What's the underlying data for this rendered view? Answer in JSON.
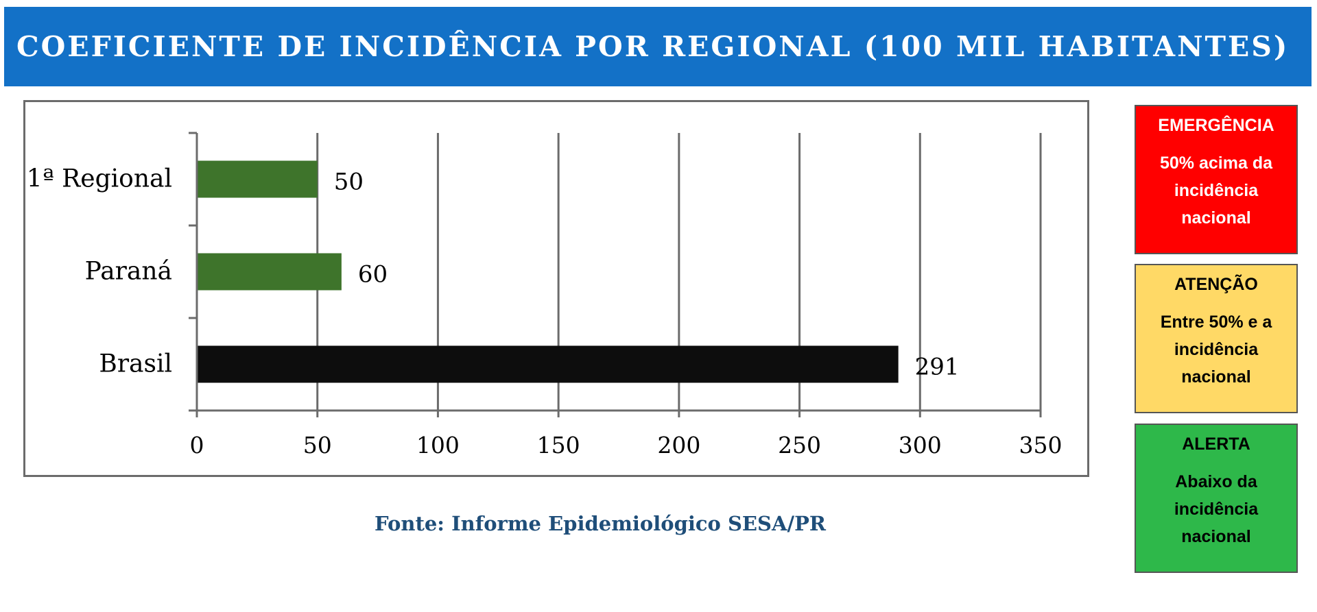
{
  "header": {
    "title": "COEFICIENTE DE INCIDÊNCIA POR REGIONAL (100 MIL HABITANTES)",
    "background_color": "#1371c7"
  },
  "chart_data": {
    "type": "bar",
    "orientation": "horizontal",
    "categories": [
      "1ª Regional",
      "Paraná",
      "Brasil"
    ],
    "values": [
      50,
      60,
      291
    ],
    "data_labels": [
      "50",
      "60",
      "291"
    ],
    "bar_colors": [
      "#3e742b",
      "#3e742b",
      "#0d0d0d"
    ],
    "x_ticks": [
      "0",
      "50",
      "100",
      "150",
      "200",
      "250",
      "300",
      "350"
    ],
    "xlim": [
      0,
      350
    ],
    "grid": "vertical",
    "legend": "none"
  },
  "source": "Fonte: Informe Epidemiológico SESA/PR",
  "legend_boxes": [
    {
      "title": "EMERGÊNCIA",
      "description": "50% acima da incidência nacional",
      "background": "#ff0000",
      "text_color": "#ffffff"
    },
    {
      "title": "ATENÇÃO",
      "description": "Entre 50% e a incidência nacional",
      "background": "#ffd966",
      "text_color": "#000000"
    },
    {
      "title": "ALERTA",
      "description": "Abaixo da incidência nacional",
      "background": "#2eb84a",
      "text_color": "#000000"
    }
  ]
}
